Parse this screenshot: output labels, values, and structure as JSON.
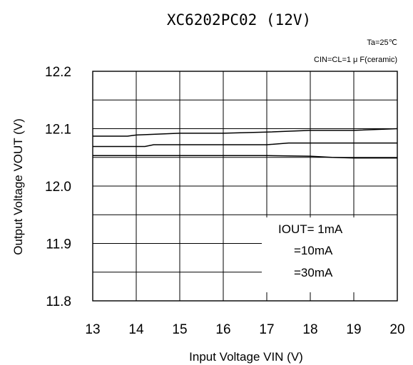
{
  "chart_data": {
    "type": "line",
    "title": "XC6202PC02  (12V)",
    "conditions": [
      "Ta=25℃",
      "CIN=CL=1 μ F(ceramic)"
    ],
    "xlabel": "Input Voltage  VIN  (V)",
    "ylabel": "Output Voltage  VOUT  (V)",
    "xlim": [
      13,
      20
    ],
    "ylim": [
      11.8,
      12.2
    ],
    "x_ticks": [
      "13",
      "14",
      "15",
      "16",
      "17",
      "18",
      "19",
      "20"
    ],
    "y_ticks": [
      "12.2",
      "12.1",
      "12.0",
      "11.9",
      "11.8"
    ],
    "grid": true,
    "legend_position": "bottom-right",
    "legend_lines": [
      "IOUT=  1mA",
      "=10mA",
      "=30mA"
    ],
    "series": [
      {
        "name": "IOUT=1mA",
        "x": [
          13,
          13.8,
          14,
          15,
          16,
          17,
          18,
          19,
          20
        ],
        "y": [
          12.087,
          12.087,
          12.089,
          12.092,
          12.092,
          12.094,
          12.097,
          12.097,
          12.1
        ]
      },
      {
        "name": "IOUT=10mA",
        "x": [
          13,
          14.2,
          14.4,
          15,
          16,
          17,
          17.5,
          18,
          19,
          20
        ],
        "y": [
          12.069,
          12.069,
          12.072,
          12.072,
          12.072,
          12.072,
          12.075,
          12.075,
          12.075,
          12.075
        ]
      },
      {
        "name": "IOUT=30mA",
        "x": [
          13,
          14,
          15,
          16,
          17,
          18,
          18.5,
          19,
          20
        ],
        "y": [
          12.053,
          12.053,
          12.053,
          12.053,
          12.053,
          12.052,
          12.05,
          12.049,
          12.049
        ]
      }
    ]
  }
}
